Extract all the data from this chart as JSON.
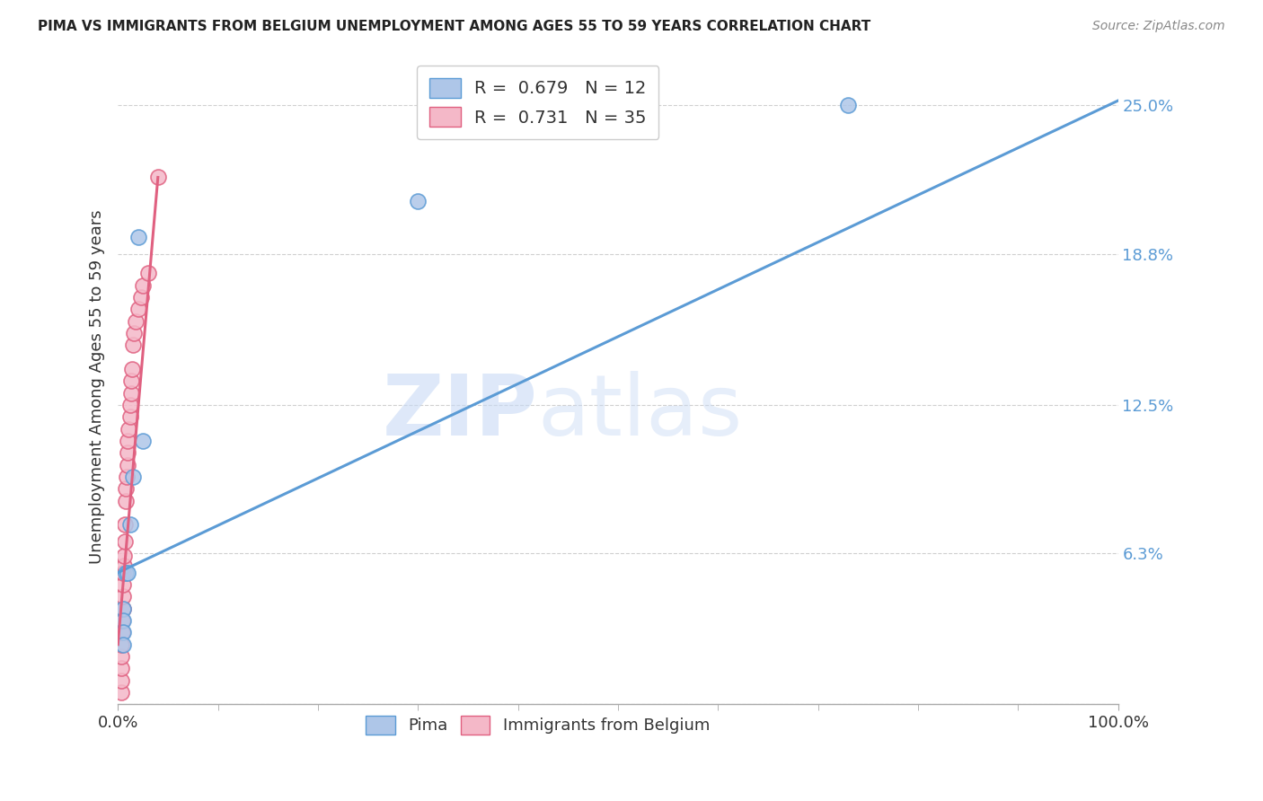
{
  "title": "PIMA VS IMMIGRANTS FROM BELGIUM UNEMPLOYMENT AMONG AGES 55 TO 59 YEARS CORRELATION CHART",
  "source": "Source: ZipAtlas.com",
  "ylabel": "Unemployment Among Ages 55 to 59 years",
  "xlim": [
    0,
    1.0
  ],
  "ylim": [
    0,
    0.265
  ],
  "yticks": [
    0.0,
    0.063,
    0.125,
    0.188,
    0.25
  ],
  "ytick_labels": [
    "",
    "6.3%",
    "12.5%",
    "18.8%",
    "25.0%"
  ],
  "xtick_labels": [
    "0.0%",
    "100.0%"
  ],
  "xticks": [
    0.0,
    1.0
  ],
  "pima_fill_color": "#aec6e8",
  "belgium_fill_color": "#f4b8c8",
  "pima_edge_color": "#5b9bd5",
  "belgium_edge_color": "#e06080",
  "pima_line_color": "#5b9bd5",
  "belgium_line_color": "#e06080",
  "ytick_color": "#5b9bd5",
  "R_pima": 0.679,
  "N_pima": 12,
  "R_belgium": 0.731,
  "N_belgium": 35,
  "watermark_text": "ZIPatlas",
  "pima_scatter_x": [
    0.005,
    0.005,
    0.005,
    0.005,
    0.008,
    0.01,
    0.012,
    0.015,
    0.02,
    0.025,
    0.3,
    0.73
  ],
  "pima_scatter_y": [
    0.04,
    0.035,
    0.03,
    0.025,
    0.055,
    0.055,
    0.075,
    0.095,
    0.195,
    0.11,
    0.21,
    0.25
  ],
  "belgium_scatter_x": [
    0.003,
    0.003,
    0.003,
    0.003,
    0.003,
    0.004,
    0.004,
    0.005,
    0.005,
    0.005,
    0.005,
    0.006,
    0.006,
    0.007,
    0.007,
    0.008,
    0.008,
    0.009,
    0.01,
    0.01,
    0.01,
    0.011,
    0.012,
    0.012,
    0.013,
    0.013,
    0.014,
    0.015,
    0.016,
    0.018,
    0.02,
    0.023,
    0.025,
    0.03,
    0.04
  ],
  "belgium_scatter_y": [
    0.005,
    0.01,
    0.015,
    0.02,
    0.025,
    0.03,
    0.035,
    0.04,
    0.045,
    0.05,
    0.055,
    0.058,
    0.062,
    0.068,
    0.075,
    0.085,
    0.09,
    0.095,
    0.1,
    0.105,
    0.11,
    0.115,
    0.12,
    0.125,
    0.13,
    0.135,
    0.14,
    0.15,
    0.155,
    0.16,
    0.165,
    0.17,
    0.175,
    0.18,
    0.22
  ],
  "pima_line_x": [
    0.0,
    1.0
  ],
  "pima_line_y": [
    0.055,
    0.252
  ],
  "belgium_line_x": [
    0.0,
    0.04
  ],
  "belgium_line_y": [
    0.025,
    0.22
  ],
  "grid_color": "#d0d0d0",
  "bg_color": "#ffffff",
  "spine_color": "#aaaaaa"
}
